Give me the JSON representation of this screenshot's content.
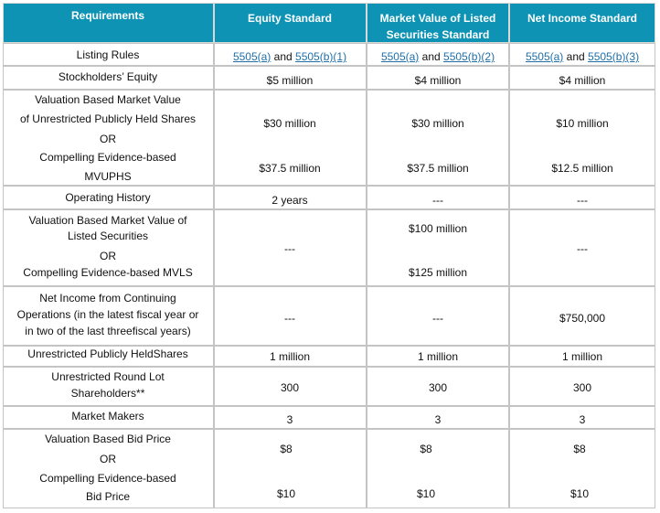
{
  "header": {
    "requirements": "Requirements",
    "equity": "Equity Standard",
    "mvls_1": "Market Value of Listed",
    "mvls_2": "Securities Standard",
    "net_income": "Net Income Standard"
  },
  "links": {
    "a": "5505(a)",
    "and": "and",
    "b1": "5505(b)(1)",
    "b2": "5505(b)(2)",
    "b3": "5505(b)(3)"
  },
  "rows": {
    "listing_rules": "Listing Rules",
    "stockholders_equity": {
      "label": "Stockholders’ Equity",
      "values": [
        "$5 million",
        "$4 million",
        "$4 million"
      ]
    },
    "mvuphs": {
      "lines": [
        "Valuation Based Market Value",
        "of Unrestricted Publicly Held Shares",
        "OR",
        "Compelling Evidence-based",
        "MVUPHS"
      ],
      "valuation": [
        "$30 million",
        "$30 million",
        "$10 million"
      ],
      "compelling": [
        "$37.5 million",
        "$37.5 million",
        "$12.5 million"
      ]
    },
    "operating_history": {
      "label": "Operating History",
      "values": [
        "2 years",
        "---",
        "---"
      ]
    },
    "mvls": {
      "lines": [
        "Valuation Based Market Value of",
        "Listed Securities",
        "OR",
        "Compelling Evidence-based MVLS"
      ],
      "values": [
        "---",
        "$100 million",
        "---"
      ],
      "compelling": "$125 million"
    },
    "net_income": {
      "lines": [
        "Net Income from Continuing",
        "Operations (in the latest fiscal year or",
        "in two of the last threefiscal years)"
      ],
      "values": [
        "---",
        "---",
        "$750,000"
      ]
    },
    "public_shares": {
      "label": "Unrestricted Publicly HeldShares",
      "values": [
        "1 million",
        "1 million",
        "1 million"
      ]
    },
    "round_lot": {
      "lines": [
        "Unrestricted Round Lot",
        "Shareholders**"
      ],
      "values": [
        "300",
        "300",
        "300"
      ]
    },
    "market_makers": {
      "label": "Market Makers",
      "values": [
        "3",
        "3",
        "3"
      ]
    },
    "bid_price": {
      "lines": [
        "Valuation Based Bid Price",
        "OR",
        "Compelling Evidence-based",
        "Bid Price"
      ],
      "valuation": [
        "$8",
        "$8",
        "$8"
      ],
      "compelling": [
        "$10",
        "$10",
        "$10"
      ]
    }
  }
}
